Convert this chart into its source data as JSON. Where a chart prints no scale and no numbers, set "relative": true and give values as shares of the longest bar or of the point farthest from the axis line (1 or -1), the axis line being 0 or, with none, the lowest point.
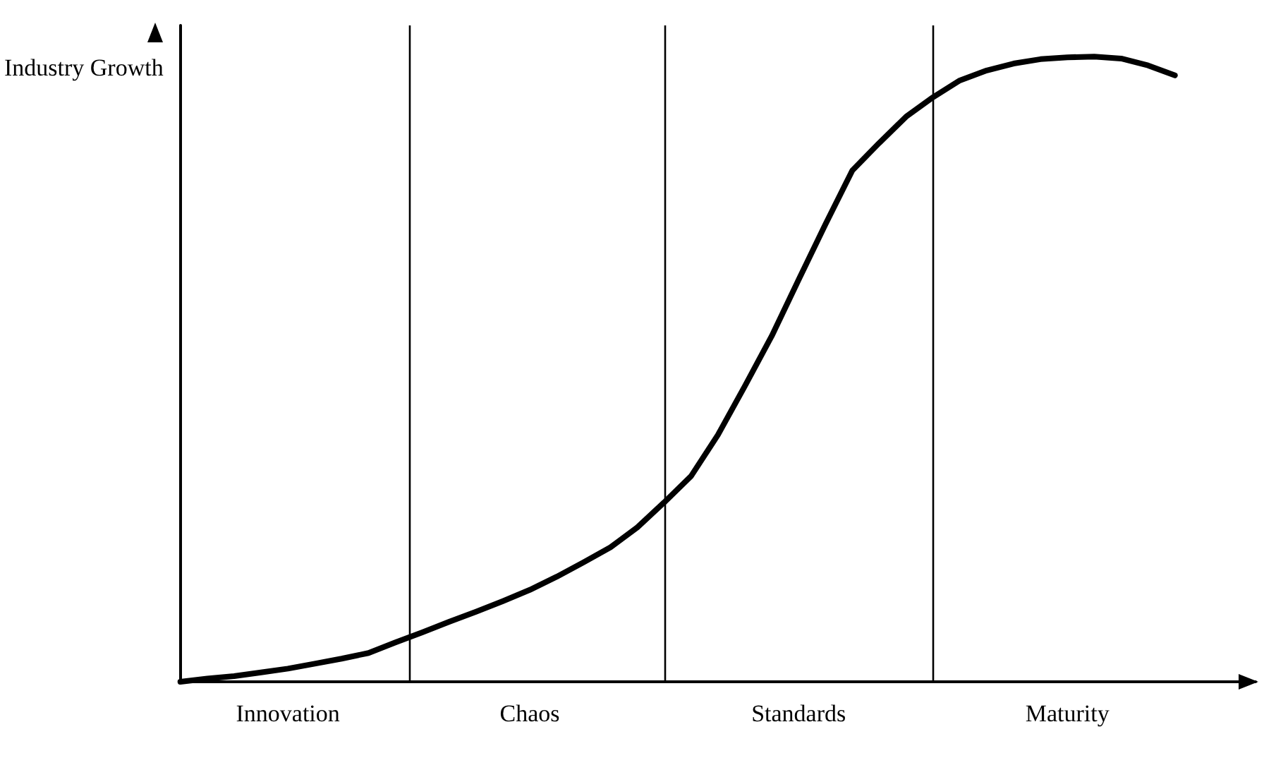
{
  "chart_data": {
    "type": "line",
    "relative": true,
    "ylabel": "Industry Growth",
    "categories": [
      null,
      null,
      null,
      null,
      "Innovation",
      null,
      null,
      null,
      null,
      null,
      null,
      null,
      null,
      "Chaos",
      null,
      null,
      null,
      null,
      null,
      null,
      null,
      null,
      null,
      "Standards",
      null,
      null,
      null,
      null,
      null,
      null,
      null,
      null,
      null,
      "Maturity",
      null,
      null,
      null,
      null,
      null,
      null,
      null
    ],
    "marker": "none",
    "line_style": "solid",
    "series": [
      {
        "color": "#000000",
        "values": [
          0,
          0.005,
          0.009,
          0.015,
          0.021,
          0.029,
          0.037,
          0.046,
          0.063,
          0.079,
          0.096,
          0.112,
          0.129,
          0.147,
          0.168,
          0.191,
          0.215,
          0.247,
          0.287,
          0.329,
          0.395,
          0.473,
          0.553,
          0.643,
          0.732,
          0.818,
          0.862,
          0.904,
          0.935,
          0.962,
          0.978,
          0.989,
          0.996,
          0.999,
          1,
          0.997,
          0.986,
          0.97,
          null,
          null,
          null
        ]
      }
    ]
  }
}
